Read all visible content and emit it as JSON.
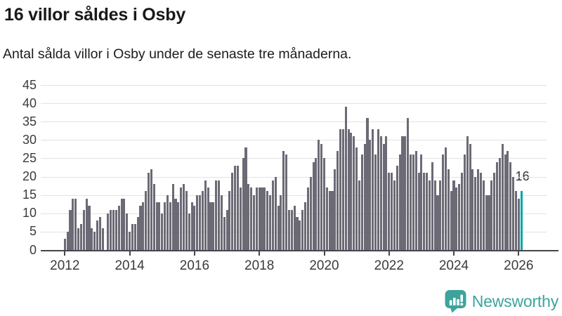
{
  "header": {
    "title": "16 villor såldes i Osby",
    "subtitle": "Antal sålda villor i Osby under de senaste tre månaderna."
  },
  "chart_data": {
    "type": "bar",
    "title": "16 villor såldes i Osby",
    "subtitle": "Antal sålda villor i Osby under de senaste tre månaderna.",
    "xlabel": "",
    "ylabel": "",
    "x_unit": "month",
    "x_start": "2012-01",
    "x_end": "2026-02",
    "x_tick_labels": [
      "2012",
      "2014",
      "2016",
      "2018",
      "2020",
      "2022",
      "2024",
      "2026"
    ],
    "y_ticks": [
      0,
      5,
      10,
      15,
      20,
      25,
      30,
      35,
      40,
      45
    ],
    "ylim": [
      0,
      45
    ],
    "grid": true,
    "legend": false,
    "bar_color": "#6b6a75",
    "highlight_color": "#00a5a8",
    "grid_color": "#e2e2e2",
    "axis_color": "#45454c",
    "highlight_index": 169,
    "highlight_label": "16",
    "values": [
      3,
      5,
      11,
      14,
      14,
      6,
      7,
      11,
      14,
      12,
      6,
      5,
      8,
      9,
      6,
      0,
      10,
      11,
      11,
      11,
      12,
      14,
      14,
      10,
      5,
      7,
      7,
      9,
      12,
      13,
      16,
      21,
      22,
      18,
      13,
      13,
      10,
      13,
      15,
      13,
      18,
      14,
      13,
      17,
      18,
      16,
      10,
      13,
      12,
      15,
      15,
      16,
      19,
      17,
      13,
      13,
      19,
      19,
      15,
      9,
      11,
      16,
      21,
      23,
      23,
      17,
      25,
      28,
      18,
      17,
      15,
      17,
      17,
      17,
      17,
      16,
      15,
      19,
      20,
      12,
      15,
      27,
      26,
      11,
      11,
      12,
      9,
      8,
      11,
      13,
      17,
      20,
      24,
      25,
      30,
      29,
      25,
      17,
      16,
      16,
      22,
      27,
      33,
      33,
      39,
      33,
      32,
      31,
      28,
      19,
      26,
      29,
      36,
      30,
      33,
      26,
      33,
      31,
      29,
      31,
      21,
      21,
      19,
      23,
      26,
      31,
      31,
      36,
      26,
      26,
      27,
      21,
      26,
      21,
      21,
      19,
      24,
      19,
      15,
      19,
      26,
      28,
      22,
      16,
      19,
      17,
      18,
      21,
      26,
      31,
      29,
      22,
      20,
      22,
      21,
      19,
      15,
      15,
      19,
      21,
      24,
      25,
      29,
      26,
      27,
      24,
      20,
      16,
      14,
      16
    ]
  },
  "footer": {
    "brand": "Newsworthy",
    "brand_color": "#3da49d",
    "logo_icon": "speech-bubble-bar-chart"
  }
}
